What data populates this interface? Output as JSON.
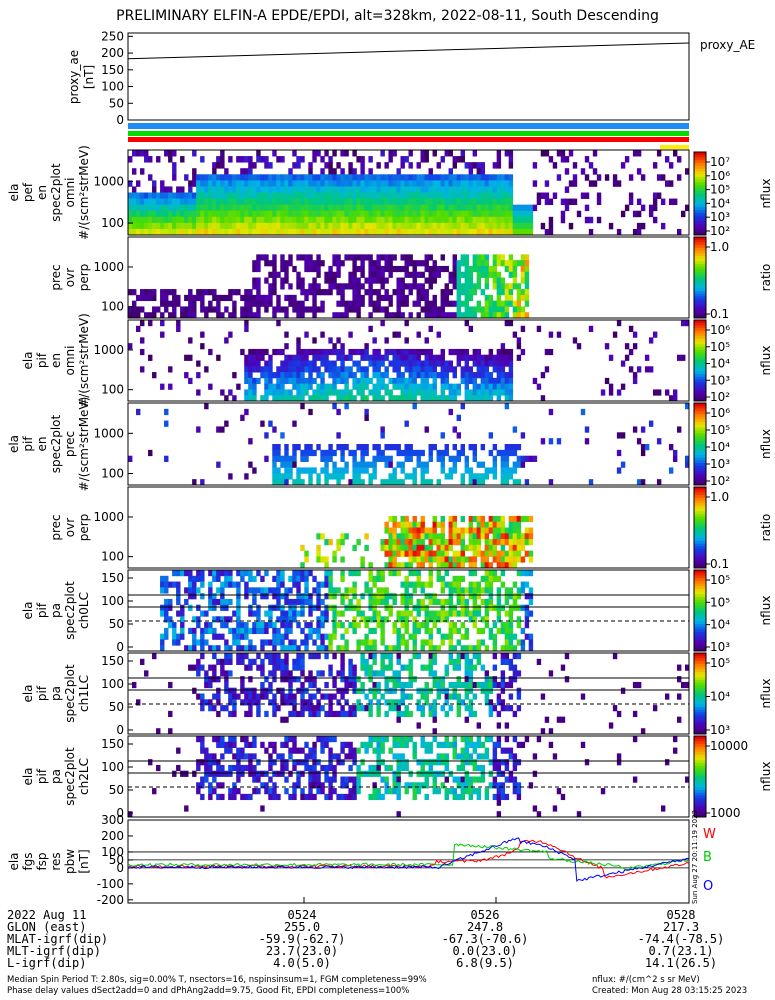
{
  "title": "PRELIMINARY ELFIN-A EPDE/EPDI, alt=328km, 2022-08-11, South Descending",
  "panels": [
    {
      "id": "ae",
      "ylabel": [
        "proxy_ae",
        "[nT]"
      ],
      "yticks": [
        "250",
        "200",
        "150",
        "100",
        "50",
        "0"
      ],
      "legend": "proxy_AE"
    },
    {
      "id": "bars"
    },
    {
      "id": "p1",
      "ylabel": [
        "ela",
        "pef",
        "en",
        "spec2plot",
        "omni",
        "#/(scm²strMeV)"
      ],
      "yticks": [
        "1000",
        "100"
      ],
      "cbar_label": "nflux",
      "cbar_ticks": [
        "10⁷",
        "10⁶",
        "10⁵",
        "10⁴",
        "10³",
        "10²"
      ]
    },
    {
      "id": "p2",
      "ylabel": [
        "prec",
        "ovr",
        "perp"
      ],
      "yticks": [
        "1000",
        "100"
      ],
      "cbar_label": "ratio",
      "cbar_ticks": [
        "1.0",
        "0.1"
      ]
    },
    {
      "id": "p3",
      "ylabel": [
        "ela",
        "pif",
        "en",
        "omni",
        "#/(scm²strMeV)"
      ],
      "yticks": [
        "1000",
        "100"
      ],
      "cbar_label": "nflux",
      "cbar_ticks": [
        "10⁶",
        "10⁵",
        "10⁴",
        "10³",
        "10²"
      ]
    },
    {
      "id": "p4",
      "ylabel": [
        "ela",
        "pif",
        "en",
        "spec2plot",
        "prec",
        "#/(scm²strMeV)"
      ],
      "yticks": [
        "1000",
        "100"
      ],
      "cbar_label": "nflux",
      "cbar_ticks": [
        "10⁶",
        "10⁵",
        "10⁴",
        "10³",
        "10²"
      ]
    },
    {
      "id": "p5",
      "ylabel": [
        "prec",
        "ovr",
        "perp"
      ],
      "yticks": [
        "1000",
        "100"
      ],
      "cbar_label": "ratio",
      "cbar_ticks": [
        "1.0",
        "0.1"
      ]
    },
    {
      "id": "p6",
      "ylabel": [
        "ela",
        "pif",
        "pa",
        "spec2plot",
        "ch0LC"
      ],
      "yticks": [
        "150",
        "100",
        "50",
        "0"
      ],
      "cbar_label": "nflux",
      "cbar_ticks": [
        "10⁵",
        "10⁵",
        "10⁴",
        "10³"
      ]
    },
    {
      "id": "p7",
      "ylabel": [
        "ela",
        "pif",
        "pa",
        "spec2plot",
        "ch1LC"
      ],
      "yticks": [
        "150",
        "100",
        "50",
        "0"
      ],
      "cbar_label": "nflux",
      "cbar_ticks": [
        "10⁵",
        "10⁴",
        "10³"
      ]
    },
    {
      "id": "p8",
      "ylabel": [
        "ela",
        "pif",
        "pa",
        "spec2plot",
        "ch2LC"
      ],
      "yticks": [
        "150",
        "100",
        "50",
        "0"
      ],
      "cbar_label": "nflux",
      "cbar_ticks": [
        "10000",
        "1000"
      ]
    },
    {
      "id": "p9",
      "ylabel": [
        "ela",
        "fgs",
        "fsp",
        "res",
        "pbw",
        "[nT]"
      ],
      "yticks": [
        "300",
        "200",
        "100",
        "50",
        "0",
        "-100",
        "-200"
      ],
      "legend_r": "W",
      "legend_g": "B",
      "legend_b": "O"
    }
  ],
  "time_axis": {
    "rows": [
      "2022 Aug 11",
      "GLON (east)",
      "MLAT-igrf(dip)",
      "MLT-igrf(dip)",
      "L-igrf(dip)"
    ],
    "cols": [
      {
        "time": "0524",
        "glon": "255.0",
        "mlat": "-59.9(-62.7)",
        "mlt": "23.7(23.0)",
        "l": "4.0(5.0)"
      },
      {
        "time": "0526",
        "glon": "247.8",
        "mlat": "-67.3(-70.6)",
        "mlt": "0.0(23.0)",
        "l": "6.8(9.5)"
      },
      {
        "time": "0528",
        "glon": "217.3",
        "mlat": "-74.4(-78.5)",
        "mlt": "0.7(23.1)",
        "l": "14.1(26.5)"
      }
    ]
  },
  "footer": {
    "left1": "Median Spin Period T: 2.80s, sig=0.00% T, nsectors=16, nspinsinsum=1, FGM completeness=99%",
    "left2": "Phase delay values dSect2add=0 and dPhAng2add=9.75, Good Fit, EPDI completeness=100%",
    "right1": "nflux: #/(cm^2 s sr MeV)",
    "right2": "Created: Mon Aug 28 03:15:25 2023"
  },
  "side_stamp": "Sun Aug 27 20:11:19 2023",
  "chart_data": {
    "type": "heatmap",
    "title": "PRELIMINARY ELFIN-A EPDE/EPDI, alt=328km, 2022-08-11, South Descending",
    "x": [
      "0524",
      "0526",
      "0528"
    ],
    "proxy_ae": {
      "x": [
        "start",
        "end"
      ],
      "values": [
        183,
        230
      ],
      "ylim": [
        0,
        260
      ]
    },
    "bw_components": {
      "series": [
        {
          "name": "W"
        },
        {
          "name": "B"
        },
        {
          "name": "O"
        }
      ],
      "ylim": [
        -220,
        300
      ]
    },
    "colors": {
      "red": "#ff0000",
      "green": "#00cc00",
      "blue": "#0000ff"
    }
  }
}
